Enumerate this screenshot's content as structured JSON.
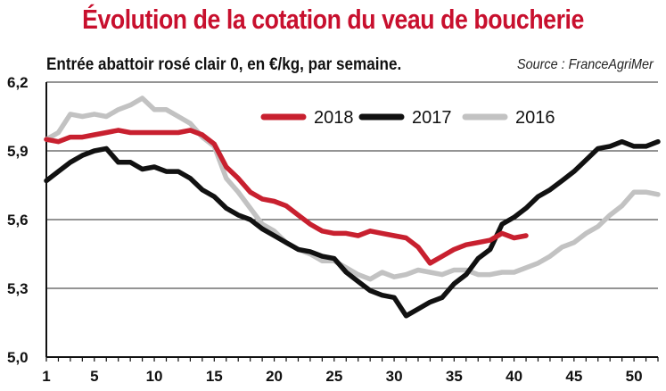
{
  "chart_data": {
    "type": "line",
    "title": "Évolution de la cotation du veau de boucherie",
    "subtitle": "Entrée abattoir rosé clair 0, en €/kg, par semaine.",
    "source": "Source : FranceAgriMer",
    "xlabel": "",
    "ylabel": "",
    "xlim": [
      1,
      52
    ],
    "ylim": [
      5.0,
      6.2
    ],
    "x_ticks": [
      1,
      5,
      10,
      15,
      20,
      25,
      30,
      35,
      40,
      45,
      50
    ],
    "y_ticks": [
      5.0,
      5.3,
      5.6,
      5.9,
      6.2
    ],
    "y_tick_labels": [
      "5,0",
      "5,3",
      "5,6",
      "5,9",
      "6,2"
    ],
    "grid": "horizontal",
    "legend_position": "top",
    "series": [
      {
        "name": "2018",
        "color": "#c8202f",
        "x": [
          1,
          2,
          3,
          4,
          5,
          6,
          7,
          8,
          9,
          10,
          11,
          12,
          13,
          14,
          15,
          16,
          17,
          18,
          19,
          20,
          21,
          22,
          23,
          24,
          25,
          26,
          27,
          28,
          29,
          30,
          31,
          32,
          33,
          34,
          35,
          36,
          37,
          38,
          39,
          40,
          41
        ],
        "values": [
          5.95,
          5.94,
          5.96,
          5.96,
          5.97,
          5.98,
          5.99,
          5.98,
          5.98,
          5.98,
          5.98,
          5.98,
          5.99,
          5.97,
          5.93,
          5.83,
          5.78,
          5.72,
          5.69,
          5.68,
          5.66,
          5.62,
          5.58,
          5.55,
          5.54,
          5.54,
          5.53,
          5.55,
          5.54,
          5.53,
          5.52,
          5.48,
          5.41,
          5.44,
          5.47,
          5.49,
          5.5,
          5.51,
          5.54,
          5.52,
          5.53
        ]
      },
      {
        "name": "2017",
        "color": "#111111",
        "x": [
          1,
          2,
          3,
          4,
          5,
          6,
          7,
          8,
          9,
          10,
          11,
          12,
          13,
          14,
          15,
          16,
          17,
          18,
          19,
          20,
          21,
          22,
          23,
          24,
          25,
          26,
          27,
          28,
          29,
          30,
          31,
          32,
          33,
          34,
          35,
          36,
          37,
          38,
          39,
          40,
          41,
          42,
          43,
          44,
          45,
          46,
          47,
          48,
          49,
          50,
          51,
          52
        ],
        "values": [
          5.77,
          5.81,
          5.85,
          5.88,
          5.9,
          5.91,
          5.85,
          5.85,
          5.82,
          5.83,
          5.81,
          5.81,
          5.78,
          5.73,
          5.7,
          5.65,
          5.62,
          5.6,
          5.56,
          5.53,
          5.5,
          5.47,
          5.46,
          5.44,
          5.43,
          5.37,
          5.33,
          5.29,
          5.27,
          5.26,
          5.18,
          5.21,
          5.24,
          5.26,
          5.32,
          5.36,
          5.43,
          5.47,
          5.58,
          5.61,
          5.65,
          5.7,
          5.73,
          5.77,
          5.81,
          5.86,
          5.91,
          5.92,
          5.94,
          5.92,
          5.92,
          5.94
        ]
      },
      {
        "name": "2016",
        "color": "#c2c2c2",
        "x": [
          1,
          2,
          3,
          4,
          5,
          6,
          7,
          8,
          9,
          10,
          11,
          12,
          13,
          14,
          15,
          16,
          17,
          18,
          19,
          20,
          21,
          22,
          23,
          24,
          25,
          26,
          27,
          28,
          29,
          30,
          31,
          32,
          33,
          34,
          35,
          36,
          37,
          38,
          39,
          40,
          41,
          42,
          43,
          44,
          45,
          46,
          47,
          48,
          49,
          50,
          51,
          52
        ],
        "values": [
          5.95,
          5.98,
          6.06,
          6.05,
          6.06,
          6.05,
          6.08,
          6.1,
          6.13,
          6.08,
          6.08,
          6.05,
          6.02,
          5.96,
          5.92,
          5.78,
          5.72,
          5.65,
          5.58,
          5.55,
          5.5,
          5.47,
          5.45,
          5.42,
          5.42,
          5.39,
          5.36,
          5.34,
          5.37,
          5.35,
          5.36,
          5.38,
          5.37,
          5.36,
          5.38,
          5.38,
          5.36,
          5.36,
          5.37,
          5.37,
          5.39,
          5.41,
          5.44,
          5.48,
          5.5,
          5.54,
          5.57,
          5.62,
          5.66,
          5.72,
          5.72,
          5.71
        ]
      }
    ]
  }
}
